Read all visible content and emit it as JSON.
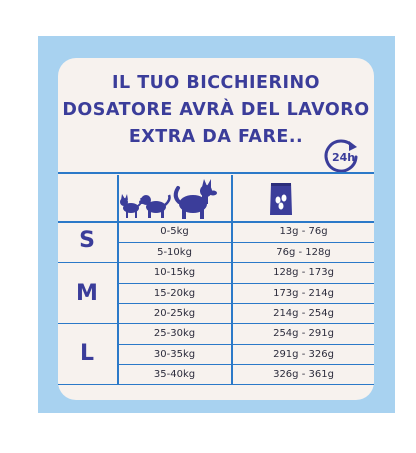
{
  "headline": {
    "line1": "IL TUO BICCHIERINO",
    "line2": "DOSATORE AVRÀ DEL LAVORO",
    "line3": "EXTRA DA FARE.."
  },
  "badge": {
    "label": "24h",
    "icon": "clock-arrow-icon"
  },
  "header_icons": {
    "dogs": "dogs-icon",
    "bag": "food-bag-icon"
  },
  "sizes": [
    {
      "label": "S"
    },
    {
      "label": "M"
    },
    {
      "label": "L"
    }
  ],
  "rows": [
    {
      "weight": "0-5kg",
      "dose": "13g - 76g"
    },
    {
      "weight": "5-10kg",
      "dose": "76g - 128g"
    },
    {
      "weight": "10-15kg",
      "dose": "128g - 173g"
    },
    {
      "weight": "15-20kg",
      "dose": "173g - 214g"
    },
    {
      "weight": "20-25kg",
      "dose": "214g - 254g"
    },
    {
      "weight": "25-30kg",
      "dose": "254g - 291g"
    },
    {
      "weight": "30-35kg",
      "dose": "291g - 326g"
    },
    {
      "weight": "35-40kg",
      "dose": "326g - 361g"
    }
  ],
  "colors": {
    "frame": "#a8d2f0",
    "card": "#f7f2ee",
    "accent": "#3b3d9a",
    "lines": "#2b79c8"
  }
}
